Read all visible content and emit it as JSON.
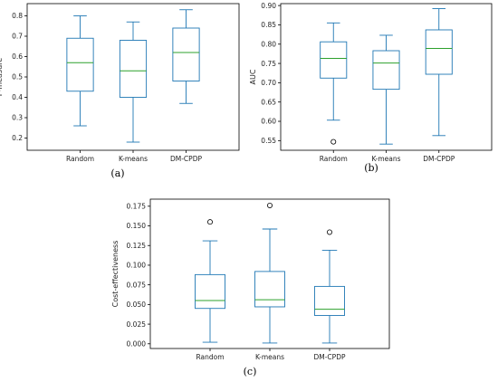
{
  "chart_data": [
    {
      "type": "box",
      "caption": "(a)",
      "ylabel": "F-measure",
      "ylim": [
        0.14,
        0.86
      ],
      "yticks": [
        "0.2",
        "0.3",
        "0.4",
        "0.5",
        "0.6",
        "0.7",
        "0.8"
      ],
      "categories": [
        "Random",
        "K-means",
        "DM-CPDP"
      ],
      "boxes": [
        {
          "min": 0.26,
          "q1": 0.43,
          "median": 0.57,
          "q3": 0.69,
          "max": 0.8,
          "outliers": []
        },
        {
          "min": 0.18,
          "q1": 0.4,
          "median": 0.53,
          "q3": 0.68,
          "max": 0.77,
          "outliers": []
        },
        {
          "min": 0.37,
          "q1": 0.48,
          "median": 0.62,
          "q3": 0.74,
          "max": 0.83,
          "outliers": []
        }
      ]
    },
    {
      "type": "box",
      "caption": "(b)",
      "ylabel": "AUC",
      "ylim": [
        0.525,
        0.905
      ],
      "yticks": [
        "0.55",
        "0.60",
        "0.65",
        "0.70",
        "0.75",
        "0.80",
        "0.85",
        "0.90"
      ],
      "categories": [
        "Random",
        "K-means",
        "DM-CPDP"
      ],
      "boxes": [
        {
          "min": 0.603,
          "q1": 0.712,
          "median": 0.763,
          "q3": 0.806,
          "max": 0.855,
          "outliers": [
            0.547
          ]
        },
        {
          "min": 0.541,
          "q1": 0.683,
          "median": 0.751,
          "q3": 0.783,
          "max": 0.823,
          "outliers": []
        },
        {
          "min": 0.563,
          "q1": 0.722,
          "median": 0.789,
          "q3": 0.837,
          "max": 0.892,
          "outliers": []
        }
      ]
    },
    {
      "type": "box",
      "caption": "(c)",
      "ylabel": "Cost-effectiveness",
      "ylim": [
        -0.006,
        0.184
      ],
      "yticks": [
        "0.000",
        "0.025",
        "0.050",
        "0.075",
        "0.100",
        "0.125",
        "0.150",
        "0.175"
      ],
      "categories": [
        "Random",
        "K-means",
        "DM-CPDP"
      ],
      "boxes": [
        {
          "min": 0.002,
          "q1": 0.045,
          "median": 0.055,
          "q3": 0.088,
          "max": 0.131,
          "outliers": [
            0.155
          ]
        },
        {
          "min": 0.001,
          "q1": 0.047,
          "median": 0.056,
          "q3": 0.092,
          "max": 0.146,
          "outliers": [
            0.176
          ]
        },
        {
          "min": 0.001,
          "q1": 0.036,
          "median": 0.044,
          "q3": 0.073,
          "max": 0.119,
          "outliers": [
            0.142
          ]
        }
      ]
    }
  ],
  "colors": {
    "box": "#1f77b4",
    "median": "#2ca02c",
    "whisker": "#1f77b4",
    "frame": "#000000",
    "outlier": "#000000"
  }
}
